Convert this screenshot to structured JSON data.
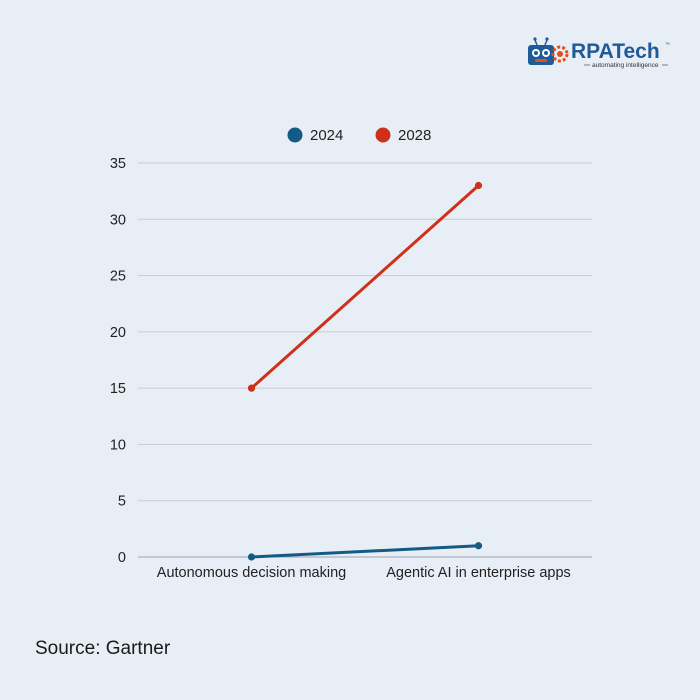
{
  "brand": {
    "name_part1": "RPA",
    "name_part2": "Tech",
    "trademark": "™",
    "tagline": "automating intelligence",
    "colors": {
      "primary": "#1f5a99",
      "accent": "#e2501e"
    }
  },
  "source": "Source: Gartner",
  "chart_data": {
    "type": "line",
    "categories": [
      "Autonomous decision making",
      "Agentic AI in enterprise apps"
    ],
    "series": [
      {
        "name": "2024",
        "values": [
          0,
          1
        ],
        "color": "#145a87"
      },
      {
        "name": "2028",
        "values": [
          15,
          33
        ],
        "color": "#d0301a"
      }
    ],
    "title": "",
    "xlabel": "",
    "ylabel": "",
    "ylim": [
      0,
      35
    ],
    "yticks": [
      0,
      5,
      10,
      15,
      20,
      25,
      30,
      35
    ],
    "grid": true,
    "legend": "top-center"
  }
}
